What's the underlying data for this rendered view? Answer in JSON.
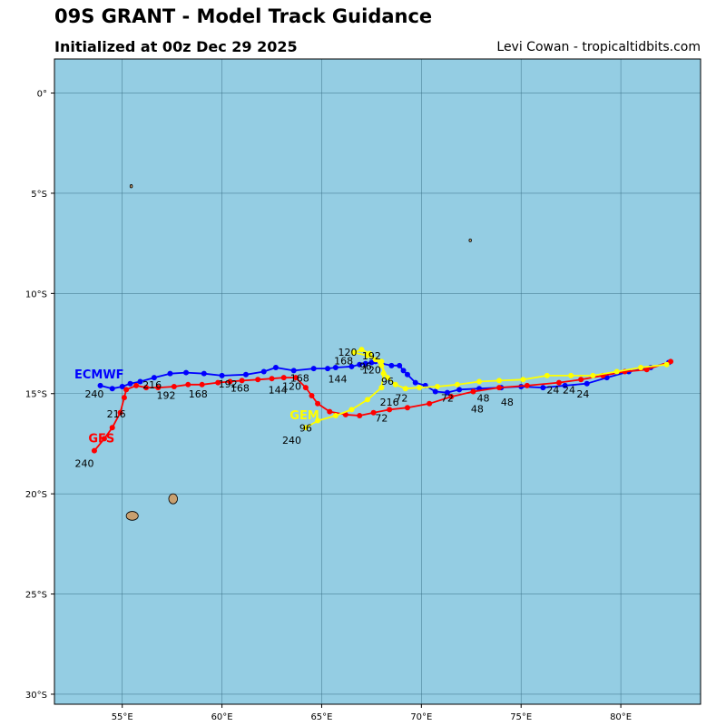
{
  "header": {
    "title": "09S GRANT - Model Track Guidance",
    "subtitle": "Initialized at 00z Dec 29 2025",
    "credit": "Levi Cowan - tropicaltidbits.com"
  },
  "axes": {
    "lon_range": [
      51.6,
      84.0
    ],
    "lat_range": [
      -30.5,
      1.7
    ],
    "lon_ticks": [
      {
        "value": 55,
        "label": "55°E"
      },
      {
        "value": 60,
        "label": "60°E"
      },
      {
        "value": 65,
        "label": "65°E"
      },
      {
        "value": 70,
        "label": "70°E"
      },
      {
        "value": 75,
        "label": "75°E"
      },
      {
        "value": 80,
        "label": "80°E"
      }
    ],
    "lat_ticks": [
      {
        "value": 0,
        "label": "0°"
      },
      {
        "value": -5,
        "label": "5°S"
      },
      {
        "value": -10,
        "label": "10°S"
      },
      {
        "value": -15,
        "label": "15°S"
      },
      {
        "value": -20,
        "label": "20°S"
      },
      {
        "value": -25,
        "label": "25°S"
      },
      {
        "value": -30,
        "label": "30°S"
      }
    ]
  },
  "colors": {
    "ocean": "#94cde3",
    "land": "#c8a070",
    "grid": "#3a6f86",
    "ecmwf": "#0000ff",
    "gfs": "#ff0000",
    "gem": "#ffff00"
  },
  "islands": [
    {
      "name": "reunion",
      "lon": 55.5,
      "lat": -21.1,
      "rx_deg": 0.3,
      "ry_deg": 0.22
    },
    {
      "name": "mauritius",
      "lon": 57.55,
      "lat": -20.25,
      "rx_deg": 0.22,
      "ry_deg": 0.25
    },
    {
      "name": "cargados",
      "lon": 55.45,
      "lat": -4.65,
      "rx_deg": 0.06,
      "ry_deg": 0.08
    },
    {
      "name": "agalega",
      "lon": 72.45,
      "lat": -7.35,
      "rx_deg": 0.06,
      "ry_deg": 0.07
    }
  ],
  "models": [
    {
      "name": "ECMWF",
      "color": "#0000ff",
      "label": {
        "text": "ECMWF",
        "lon": 52.6,
        "lat": -14.05
      },
      "track": [
        [
          82.4,
          -13.45
        ],
        [
          81.5,
          -13.7
        ],
        [
          80.4,
          -13.9
        ],
        [
          79.3,
          -14.2
        ],
        [
          78.3,
          -14.5
        ],
        [
          77.2,
          -14.6
        ],
        [
          76.1,
          -14.7
        ],
        [
          75.0,
          -14.65
        ],
        [
          74.0,
          -14.7
        ],
        [
          72.9,
          -14.75
        ],
        [
          71.9,
          -14.8
        ],
        [
          71.3,
          -14.95
        ],
        [
          70.7,
          -14.9
        ],
        [
          70.2,
          -14.6
        ],
        [
          69.7,
          -14.45
        ],
        [
          69.3,
          -14.05
        ],
        [
          69.1,
          -13.85
        ],
        [
          68.9,
          -13.6
        ],
        [
          68.5,
          -13.6
        ],
        [
          68.0,
          -13.5
        ],
        [
          67.7,
          -13.4
        ],
        [
          67.5,
          -13.45
        ],
        [
          67.2,
          -13.5
        ],
        [
          66.9,
          -13.55
        ],
        [
          66.5,
          -13.65
        ],
        [
          65.7,
          -13.7
        ],
        [
          65.3,
          -13.75
        ],
        [
          64.6,
          -13.75
        ],
        [
          63.6,
          -13.85
        ],
        [
          62.7,
          -13.7
        ],
        [
          62.1,
          -13.9
        ],
        [
          61.2,
          -14.05
        ],
        [
          60.0,
          -14.1
        ],
        [
          59.1,
          -14.0
        ],
        [
          58.2,
          -13.95
        ],
        [
          57.4,
          -14.0
        ],
        [
          56.6,
          -14.2
        ],
        [
          55.9,
          -14.4
        ],
        [
          55.4,
          -14.5
        ],
        [
          55.0,
          -14.65
        ],
        [
          54.5,
          -14.75
        ],
        [
          53.9,
          -14.6
        ]
      ],
      "hour_labels": [
        {
          "text": "240",
          "lon": 53.6,
          "lat": -15.2
        },
        {
          "text": "192",
          "lon": 57.2,
          "lat": -15.25
        },
        {
          "text": "216",
          "lon": 56.5,
          "lat": -14.75
        },
        {
          "text": "168",
          "lon": 60.9,
          "lat": -14.9
        },
        {
          "text": "144",
          "lon": 62.8,
          "lat": -15.0
        },
        {
          "text": "144",
          "lon": 65.8,
          "lat": -14.45
        },
        {
          "text": "120",
          "lon": 66.3,
          "lat": -13.1
        },
        {
          "text": "96",
          "lon": 68.3,
          "lat": -14.55
        },
        {
          "text": "72",
          "lon": 71.3,
          "lat": -15.4
        },
        {
          "text": "48",
          "lon": 72.8,
          "lat": -15.95
        },
        {
          "text": "24",
          "lon": 78.1,
          "lat": -15.2
        }
      ]
    },
    {
      "name": "GFS",
      "color": "#ff0000",
      "label": {
        "text": "GFS",
        "lon": 53.3,
        "lat": -17.25
      },
      "track": [
        [
          82.5,
          -13.4
        ],
        [
          81.3,
          -13.8
        ],
        [
          80.2,
          -13.9
        ],
        [
          79.1,
          -14.1
        ],
        [
          78.0,
          -14.3
        ],
        [
          76.9,
          -14.45
        ],
        [
          75.3,
          -14.6
        ],
        [
          73.9,
          -14.7
        ],
        [
          72.6,
          -14.9
        ],
        [
          71.5,
          -15.15
        ],
        [
          70.4,
          -15.5
        ],
        [
          69.3,
          -15.7
        ],
        [
          68.4,
          -15.8
        ],
        [
          67.6,
          -15.95
        ],
        [
          66.9,
          -16.1
        ],
        [
          66.2,
          -16.05
        ],
        [
          65.4,
          -15.9
        ],
        [
          64.8,
          -15.5
        ],
        [
          64.5,
          -15.1
        ],
        [
          64.2,
          -14.7
        ],
        [
          63.7,
          -14.2
        ],
        [
          63.1,
          -14.2
        ],
        [
          62.5,
          -14.25
        ],
        [
          61.8,
          -14.3
        ],
        [
          61.0,
          -14.35
        ],
        [
          60.4,
          -14.4
        ],
        [
          59.8,
          -14.45
        ],
        [
          59.0,
          -14.55
        ],
        [
          58.3,
          -14.55
        ],
        [
          57.6,
          -14.65
        ],
        [
          56.8,
          -14.7
        ],
        [
          56.2,
          -14.7
        ],
        [
          55.7,
          -14.6
        ],
        [
          55.2,
          -14.8
        ],
        [
          55.1,
          -15.2
        ],
        [
          54.9,
          -15.95
        ],
        [
          54.5,
          -16.7
        ],
        [
          54.1,
          -17.25
        ],
        [
          53.6,
          -17.85
        ]
      ],
      "hour_labels": [
        {
          "text": "240",
          "lon": 53.1,
          "lat": -18.65
        },
        {
          "text": "216",
          "lon": 54.7,
          "lat": -16.2
        },
        {
          "text": "168",
          "lon": 58.8,
          "lat": -15.2
        },
        {
          "text": "192",
          "lon": 60.3,
          "lat": -14.7
        },
        {
          "text": "120",
          "lon": 63.5,
          "lat": -14.8
        },
        {
          "text": "168",
          "lon": 63.9,
          "lat": -14.4
        },
        {
          "text": "96",
          "lon": 67.2,
          "lat": -13.8
        },
        {
          "text": "72",
          "lon": 68.0,
          "lat": -16.4
        },
        {
          "text": "48",
          "lon": 74.3,
          "lat": -15.6
        },
        {
          "text": "24",
          "lon": 76.6,
          "lat": -15.0
        }
      ]
    },
    {
      "name": "GEM",
      "color": "#ffff00",
      "label": {
        "text": "GEM",
        "lon": 63.4,
        "lat": -16.1
      },
      "track": [
        [
          82.3,
          -13.55
        ],
        [
          81.0,
          -13.7
        ],
        [
          79.8,
          -13.9
        ],
        [
          78.6,
          -14.1
        ],
        [
          77.5,
          -14.1
        ],
        [
          76.3,
          -14.1
        ],
        [
          75.1,
          -14.3
        ],
        [
          73.9,
          -14.35
        ],
        [
          72.9,
          -14.4
        ],
        [
          71.8,
          -14.55
        ],
        [
          70.8,
          -14.65
        ],
        [
          69.9,
          -14.7
        ],
        [
          69.2,
          -14.75
        ],
        [
          68.7,
          -14.55
        ],
        [
          68.3,
          -14.2
        ],
        [
          68.0,
          -13.6
        ],
        [
          67.7,
          -13.3
        ],
        [
          67.4,
          -13.0
        ],
        [
          67.0,
          -12.8
        ],
        [
          66.6,
          -12.95
        ],
        [
          67.3,
          -13.1
        ],
        [
          68.0,
          -13.4
        ],
        [
          68.1,
          -14.0
        ],
        [
          68.0,
          -14.7
        ],
        [
          67.3,
          -15.3
        ],
        [
          66.5,
          -15.8
        ],
        [
          65.7,
          -16.1
        ],
        [
          64.8,
          -16.35
        ],
        [
          64.2,
          -16.7
        ]
      ],
      "hour_labels": [
        {
          "text": "240",
          "lon": 63.5,
          "lat": -17.5
        },
        {
          "text": "96",
          "lon": 64.2,
          "lat": -16.9
        },
        {
          "text": "216",
          "lon": 68.4,
          "lat": -15.6
        },
        {
          "text": "120",
          "lon": 67.5,
          "lat": -14.0
        },
        {
          "text": "168",
          "lon": 66.1,
          "lat": -13.55
        },
        {
          "text": "192",
          "lon": 67.5,
          "lat": -13.3
        },
        {
          "text": "72",
          "lon": 69.0,
          "lat": -15.4
        },
        {
          "text": "48",
          "lon": 73.1,
          "lat": -15.4
        },
        {
          "text": "24",
          "lon": 77.4,
          "lat": -15.0
        }
      ]
    }
  ]
}
